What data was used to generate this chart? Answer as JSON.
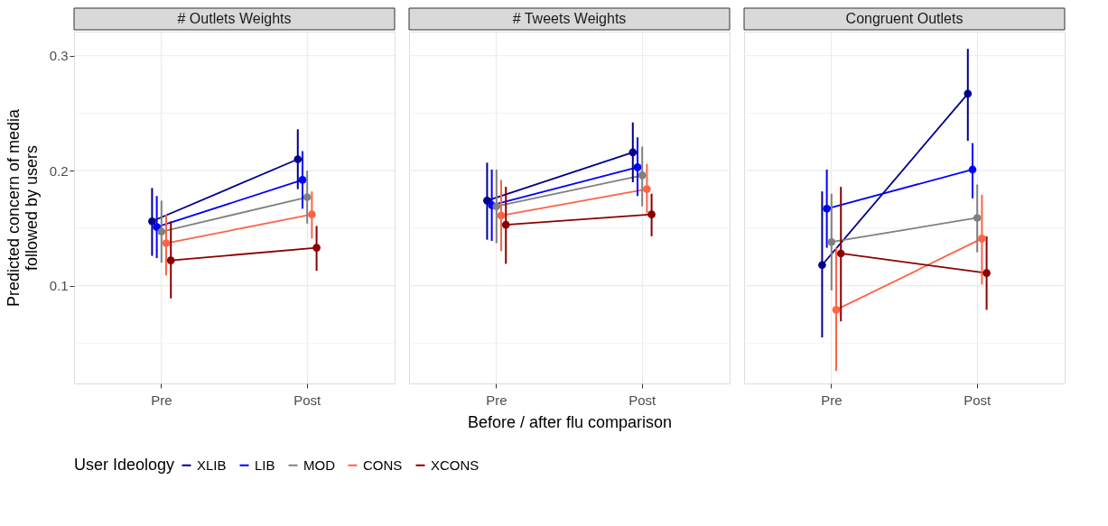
{
  "chart_data": [
    {
      "type": "line",
      "title": "# Outlets Weights",
      "ylabel": "Predicted concern of media\nfollowed by users",
      "legend_title": "User Ideology",
      "legend": "bottom",
      "marker": "circle",
      "grid": true,
      "categories": [
        "Pre",
        "Post"
      ],
      "ylim": [
        0.015,
        0.321
      ],
      "yticks": [
        {
          "value": 0.05,
          "label": null
        },
        0.1,
        {
          "value": 0.15,
          "label": null
        },
        0.2,
        {
          "value": 0.25,
          "label": null
        },
        0.3
      ],
      "series": [
        {
          "name": "XLIB",
          "color": "#00008b",
          "values": [
            0.156,
            0.21
          ],
          "errors": [
            [
              0.126,
              0.185
            ],
            [
              0.184,
              0.236
            ]
          ]
        },
        {
          "name": "LIB",
          "color": "#0000ff",
          "values": [
            0.151,
            0.192
          ],
          "errors": [
            [
              0.124,
              0.178
            ],
            [
              0.167,
              0.217
            ]
          ]
        },
        {
          "name": "MOD",
          "color": "#808080",
          "values": [
            0.147,
            0.177
          ],
          "errors": [
            [
              0.12,
              0.174
            ],
            [
              0.154,
              0.2
            ]
          ]
        },
        {
          "name": "CONS",
          "color": "#ff6347",
          "values": [
            0.137,
            0.162
          ],
          "errors": [
            [
              0.109,
              0.162
            ],
            [
              0.141,
              0.182
            ]
          ]
        },
        {
          "name": "XCONS",
          "color": "#8b0000",
          "values": [
            0.122,
            0.133
          ],
          "errors": [
            [
              0.089,
              0.156
            ],
            [
              0.113,
              0.152
            ]
          ]
        }
      ]
    },
    {
      "type": "line",
      "title": "# Tweets Weights",
      "xlabel": "Before / after flu comparison",
      "marker": "circle",
      "grid": true,
      "tick_labels": "x",
      "categories": [
        "Pre",
        "Post"
      ],
      "ylim": [
        0.015,
        0.321
      ],
      "yticks": [
        {
          "value": 0.05,
          "label": null
        },
        0.1,
        {
          "value": 0.15,
          "label": null
        },
        0.2,
        {
          "value": 0.25,
          "label": null
        },
        0.3
      ],
      "series": [
        {
          "color": "#00008b",
          "values": [
            0.174,
            0.216
          ],
          "errors": [
            [
              0.14,
              0.207
            ],
            [
              0.19,
              0.242
            ]
          ]
        },
        {
          "color": "#0000ff",
          "values": [
            0.17,
            0.203
          ],
          "errors": [
            [
              0.139,
              0.201
            ],
            [
              0.178,
              0.229
            ]
          ]
        },
        {
          "color": "#808080",
          "values": [
            0.169,
            0.196
          ],
          "errors": [
            [
              0.137,
              0.201
            ],
            [
              0.169,
              0.221
            ]
          ]
        },
        {
          "color": "#ff6347",
          "values": [
            0.161,
            0.184
          ],
          "errors": [
            [
              0.13,
              0.192
            ],
            [
              0.163,
              0.206
            ]
          ]
        },
        {
          "color": "#8b0000",
          "values": [
            0.153,
            0.162
          ],
          "errors": [
            [
              0.119,
              0.186
            ],
            [
              0.143,
              0.18
            ]
          ]
        }
      ]
    },
    {
      "type": "line",
      "title": "Congruent Outlets",
      "marker": "circle",
      "grid": true,
      "tick_labels": "x",
      "categories": [
        "Pre",
        "Post"
      ],
      "ylim": [
        0.015,
        0.321
      ],
      "yticks": [
        {
          "value": 0.05,
          "label": null
        },
        0.1,
        {
          "value": 0.15,
          "label": null
        },
        0.2,
        {
          "value": 0.25,
          "label": null
        },
        0.3
      ],
      "series": [
        {
          "color": "#00008b",
          "values": [
            0.118,
            0.267
          ],
          "errors": [
            [
              0.055,
              0.182
            ],
            [
              0.226,
              0.306
            ]
          ]
        },
        {
          "color": "#0000ff",
          "values": [
            0.167,
            0.201
          ],
          "errors": [
            [
              0.133,
              0.201
            ],
            [
              0.176,
              0.224
            ]
          ]
        },
        {
          "color": "#808080",
          "values": [
            0.138,
            0.159
          ],
          "errors": [
            [
              0.096,
              0.18
            ],
            [
              0.129,
              0.188
            ]
          ]
        },
        {
          "color": "#ff6347",
          "values": [
            0.079,
            0.141
          ],
          "errors": [
            [
              0.026,
              0.133
            ],
            [
              0.101,
              0.179
            ]
          ]
        },
        {
          "color": "#8b0000",
          "values": [
            0.128,
            0.111
          ],
          "errors": [
            [
              0.069,
              0.186
            ],
            [
              0.079,
              0.143
            ]
          ]
        }
      ]
    }
  ]
}
